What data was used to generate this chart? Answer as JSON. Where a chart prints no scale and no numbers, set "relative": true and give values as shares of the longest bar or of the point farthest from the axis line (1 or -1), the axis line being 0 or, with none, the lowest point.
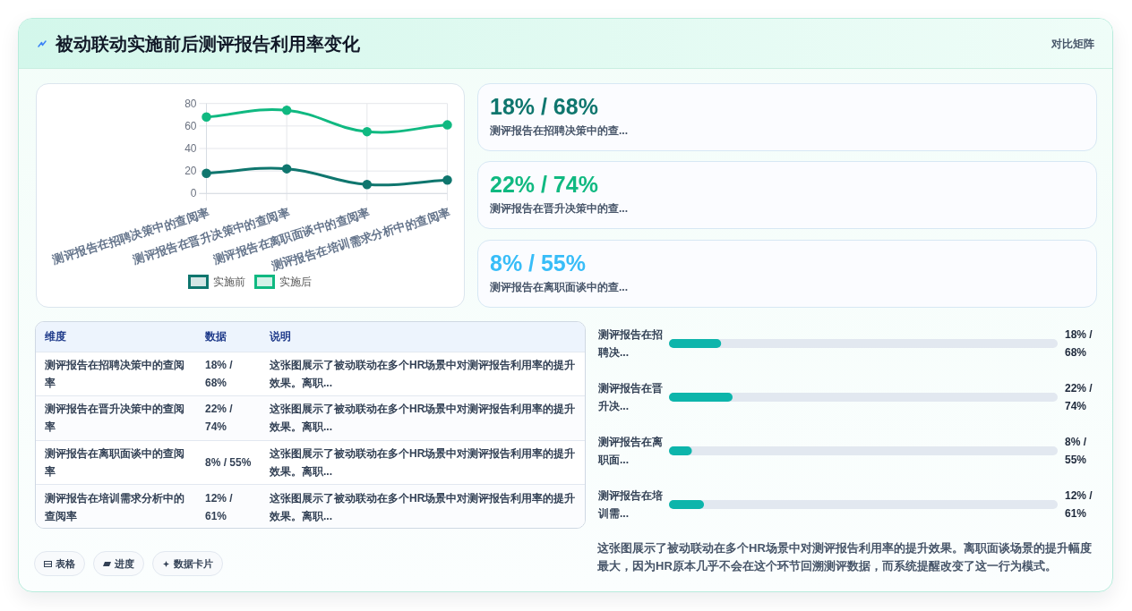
{
  "chart_data": [
    {
      "type": "other",
      "title": "被动联动实施前后测评报告利用率变化",
      "annotations": [
        "对比矩阵"
      ]
    },
    {
      "type": "line",
      "categories": [
        "测评报告在招聘决策中的查阅率",
        "测评报告在晋升决策中的查阅率",
        "测评报告在离职面谈中的查阅率",
        "测评报告在培训需求分析中的查阅率"
      ],
      "series": [
        {
          "name": "实施前",
          "color": "#0f766e",
          "values": [
            18,
            22,
            8,
            12
          ]
        },
        {
          "name": "实施后",
          "color": "#10b981",
          "values": [
            68,
            74,
            55,
            61
          ]
        }
      ],
      "ylim": [
        0,
        80
      ],
      "yticks": [
        0,
        20,
        40,
        60,
        80
      ],
      "grid": true,
      "legend": "bottom",
      "marker": "circle"
    },
    {
      "type": "other",
      "annotations": [
        "18% / 68%",
        "测评报告在招聘决策中的查...",
        "22% / 74%",
        "测评报告在晋升决策中的查...",
        "8% / 55%",
        "测评报告在离职面谈中的查..."
      ],
      "colors": [
        "#0f766e",
        "#10b981",
        "#38bdf8"
      ]
    },
    {
      "type": "other",
      "categories": [
        "维度",
        "数据",
        "说明"
      ],
      "annotations": [
        "测评报告在招聘决策中的查阅率",
        "18% / 68%",
        "这张图展示了被动联动在多个HR场景中对测评报告利用率的提升效果。离职...",
        "测评报告在晋升决策中的查阅率",
        "22% / 74%",
        "这张图展示了被动联动在多个HR场景中对测评报告利用率的提升效果。离职...",
        "测评报告在离职面谈中的查阅率",
        "8% / 55%",
        "这张图展示了被动联动在多个HR场景中对测评报告利用率的提升效果。离职...",
        "测评报告在培训需求分析中的查阅率",
        "12% / 61%",
        "这张图展示了被动联动在多个HR场景中对测评报告利用率的提升效果。离职..."
      ]
    },
    {
      "type": "bar",
      "orientation": "horizontal",
      "relative": true,
      "categories": [
        "测评报告在招聘决...",
        "测评报告在晋升决...",
        "测评报告在离职面...",
        "测评报告在培训需..."
      ],
      "values": [
        0.82,
        1,
        0.36,
        0.55
      ],
      "color": "#0db5ab",
      "annotations": [
        "18% / 68%",
        "22% / 74%",
        "8% / 55%",
        "12% / 61%",
        "这张图展示了被动联动在多个HR场景中对测评报告利用率的提升效果。离职面谈场景的提升幅度最大，因为HR原本几乎不会在这个环节回溯测评数据，而系统提醒改变了这一行为模式。"
      ]
    },
    {
      "type": "other",
      "annotations": [
        "表格",
        "进度",
        "数据卡片"
      ]
    }
  ]
}
